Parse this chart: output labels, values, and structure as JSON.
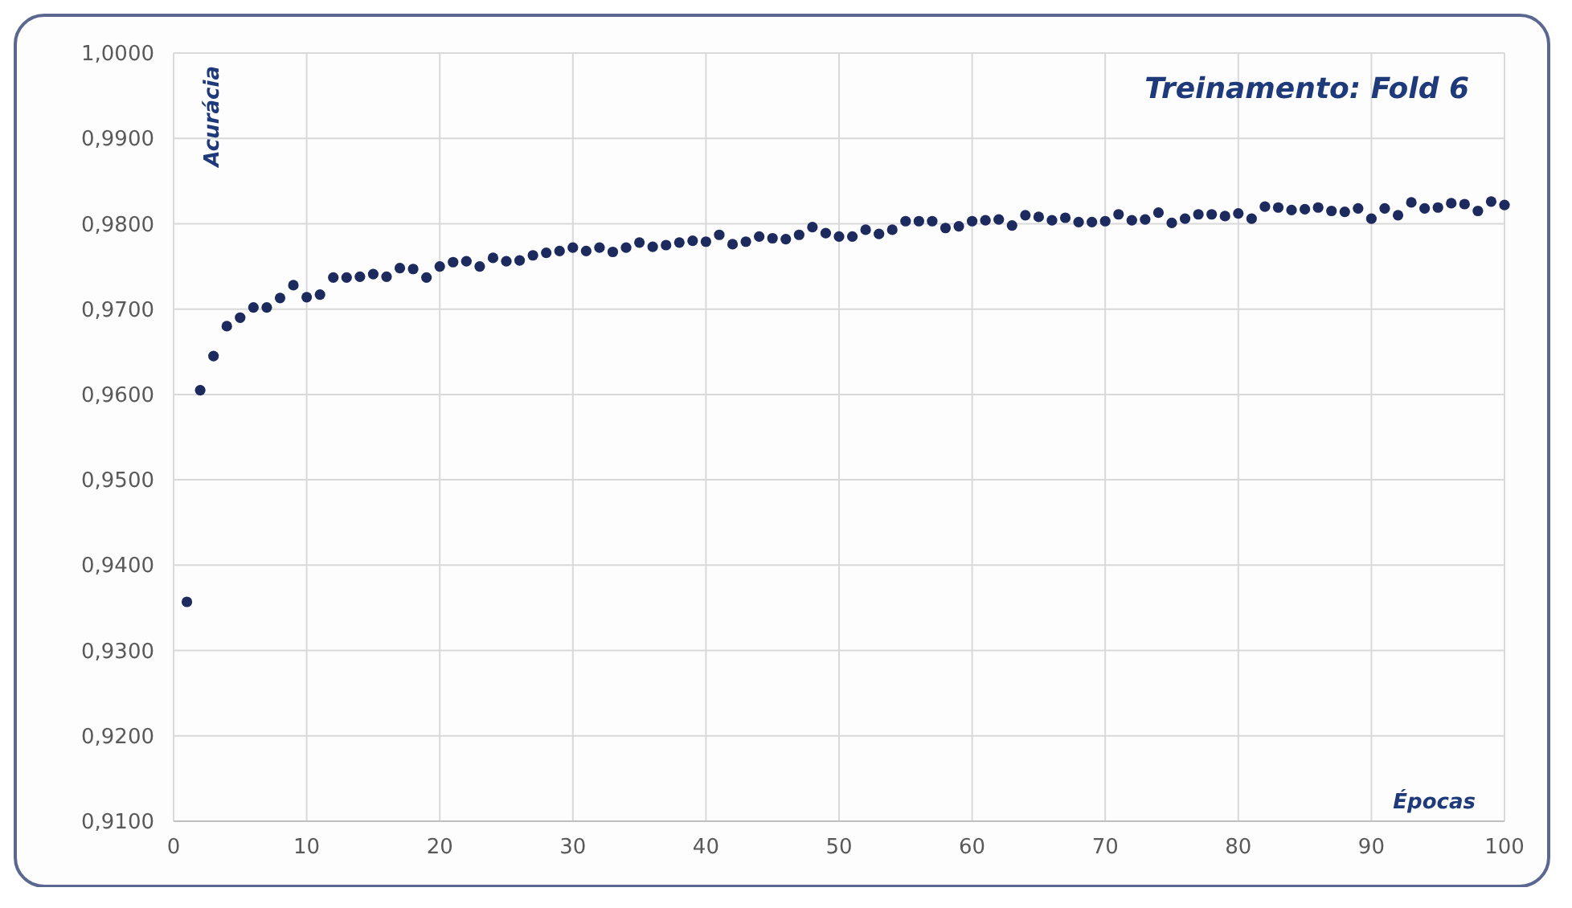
{
  "chart_data": {
    "type": "scatter",
    "title": "Treinamento:  Fold 6",
    "xlabel": "Épocas",
    "ylabel": "Acurácia",
    "x": [
      1,
      2,
      3,
      4,
      5,
      6,
      7,
      8,
      9,
      10,
      11,
      12,
      13,
      14,
      15,
      16,
      17,
      18,
      19,
      20,
      21,
      22,
      23,
      24,
      25,
      26,
      27,
      28,
      29,
      30,
      31,
      32,
      33,
      34,
      35,
      36,
      37,
      38,
      39,
      40,
      41,
      42,
      43,
      44,
      45,
      46,
      47,
      48,
      49,
      50,
      51,
      52,
      53,
      54,
      55,
      56,
      57,
      58,
      59,
      60,
      61,
      62,
      63,
      64,
      65,
      66,
      67,
      68,
      69,
      70,
      71,
      72,
      73,
      74,
      75,
      76,
      77,
      78,
      79,
      80,
      81,
      82,
      83,
      84,
      85,
      86,
      87,
      88,
      89,
      90,
      91,
      92,
      93,
      94,
      95,
      96,
      97,
      98,
      99,
      100
    ],
    "series": [
      {
        "color": "#1c2a5e",
        "values": [
          0.9357,
          0.9605,
          0.9645,
          0.968,
          0.969,
          0.9702,
          0.9702,
          0.9713,
          0.9728,
          0.9714,
          0.9717,
          0.9737,
          0.9737,
          0.9738,
          0.9741,
          0.9738,
          0.9748,
          0.9747,
          0.9737,
          0.975,
          0.9755,
          0.9756,
          0.975,
          0.976,
          0.9756,
          0.9757,
          0.9763,
          0.9766,
          0.9768,
          0.9772,
          0.9768,
          0.9772,
          0.9767,
          0.9772,
          0.9778,
          0.9773,
          0.9775,
          0.9778,
          0.978,
          0.9779,
          0.9787,
          0.9776,
          0.9779,
          0.9785,
          0.9783,
          0.9782,
          0.9787,
          0.9796,
          0.9789,
          0.9785,
          0.9785,
          0.9793,
          0.9788,
          0.9793,
          0.9803,
          0.9803,
          0.9803,
          0.9795,
          0.9797,
          0.9803,
          0.9804,
          0.9805,
          0.9798,
          0.981,
          0.9808,
          0.9804,
          0.9807,
          0.9802,
          0.9802,
          0.9803,
          0.9811,
          0.9804,
          0.9805,
          0.9813,
          0.9801,
          0.9806,
          0.9811,
          0.9811,
          0.9809,
          0.9812,
          0.9806,
          0.982,
          0.9819,
          0.9816,
          0.9817,
          0.9819,
          0.9815,
          0.9814,
          0.9818,
          0.9806,
          0.9818,
          0.981,
          0.9825,
          0.9818,
          0.9819,
          0.9824,
          0.9823,
          0.9815,
          0.9826,
          0.9822
        ]
      }
    ],
    "xlim": [
      0,
      100
    ],
    "xticks": [
      0,
      10,
      20,
      30,
      40,
      50,
      60,
      70,
      80,
      90,
      100
    ],
    "ylim": [
      0.91,
      1
    ],
    "yticks": [
      {
        "value": 0.91,
        "label": "0,9100"
      },
      {
        "value": 0.92,
        "label": "0,9200"
      },
      {
        "value": 0.93,
        "label": "0,9300"
      },
      {
        "value": 0.94,
        "label": "0,9400"
      },
      {
        "value": 0.95,
        "label": "0,9500"
      },
      {
        "value": 0.96,
        "label": "0,9600"
      },
      {
        "value": 0.97,
        "label": "0,9700"
      },
      {
        "value": 0.98,
        "label": "0,9800"
      },
      {
        "value": 0.99,
        "label": "0,9900"
      },
      {
        "value": 1,
        "label": "1,0000"
      }
    ],
    "grid": true,
    "marker": "circle"
  }
}
